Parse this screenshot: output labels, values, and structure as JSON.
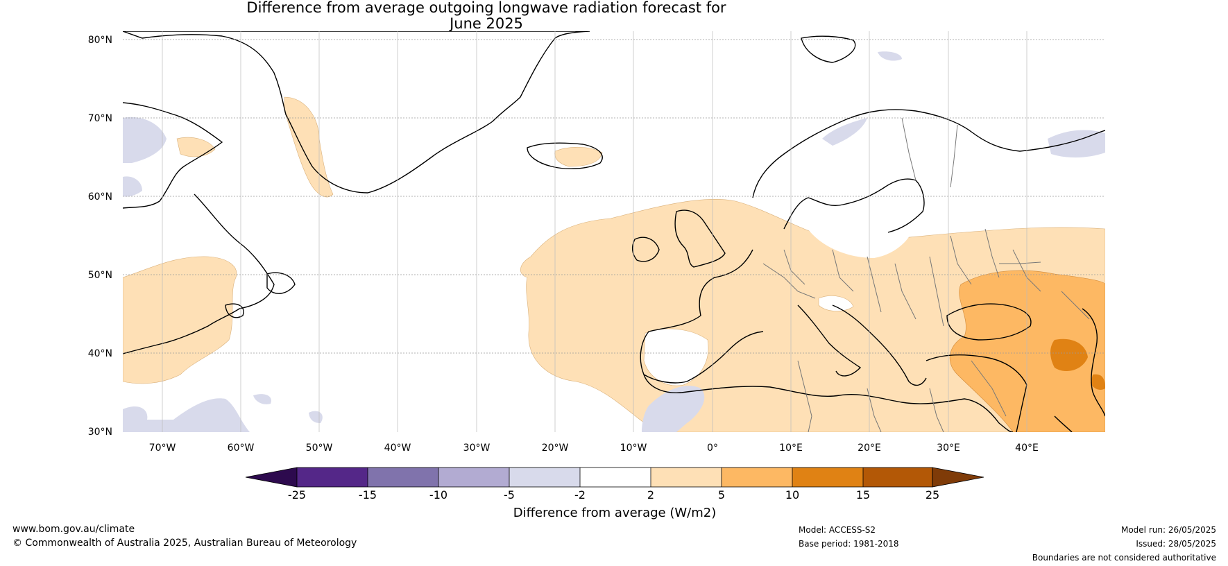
{
  "title_line1": "Difference from average outgoing longwave radiation forecast for",
  "title_line2": "June 2025",
  "axes": {
    "lat_labels": [
      "80°N",
      "70°N",
      "60°N",
      "50°N",
      "40°N",
      "30°N"
    ],
    "lon_labels": [
      "70°W",
      "60°W",
      "50°W",
      "40°W",
      "30°W",
      "20°W",
      "10°W",
      "0°",
      "10°E",
      "20°E",
      "30°E",
      "40°E"
    ],
    "extent": {
      "lon": [
        -75,
        50
      ],
      "lat": [
        30,
        81
      ]
    }
  },
  "legend": {
    "title": "Difference from average (W/m2)",
    "ticks": [
      "-25",
      "-15",
      "-10",
      "-5",
      "-2",
      "2",
      "5",
      "10",
      "15",
      "25"
    ],
    "colors": [
      "#2d0a4e",
      "#542788",
      "#8073ac",
      "#b2abd2",
      "#d8daeb",
      "#ffffff",
      "#fee0b6",
      "#fdb863",
      "#e08214",
      "#b35806",
      "#7f3b08"
    ]
  },
  "footer": {
    "website": "www.bom.gov.au/climate",
    "copyright": "© Commonwealth of Australia 2025, Australian Bureau of Meteorology",
    "model": "Model: ACCESS-S2",
    "base_period": "Base period: 1981-2018",
    "model_run": "Model run: 26/05/2025",
    "issued": "Issued: 28/05/2025",
    "disclaimer": "Boundaries are not considered authoritative"
  }
}
